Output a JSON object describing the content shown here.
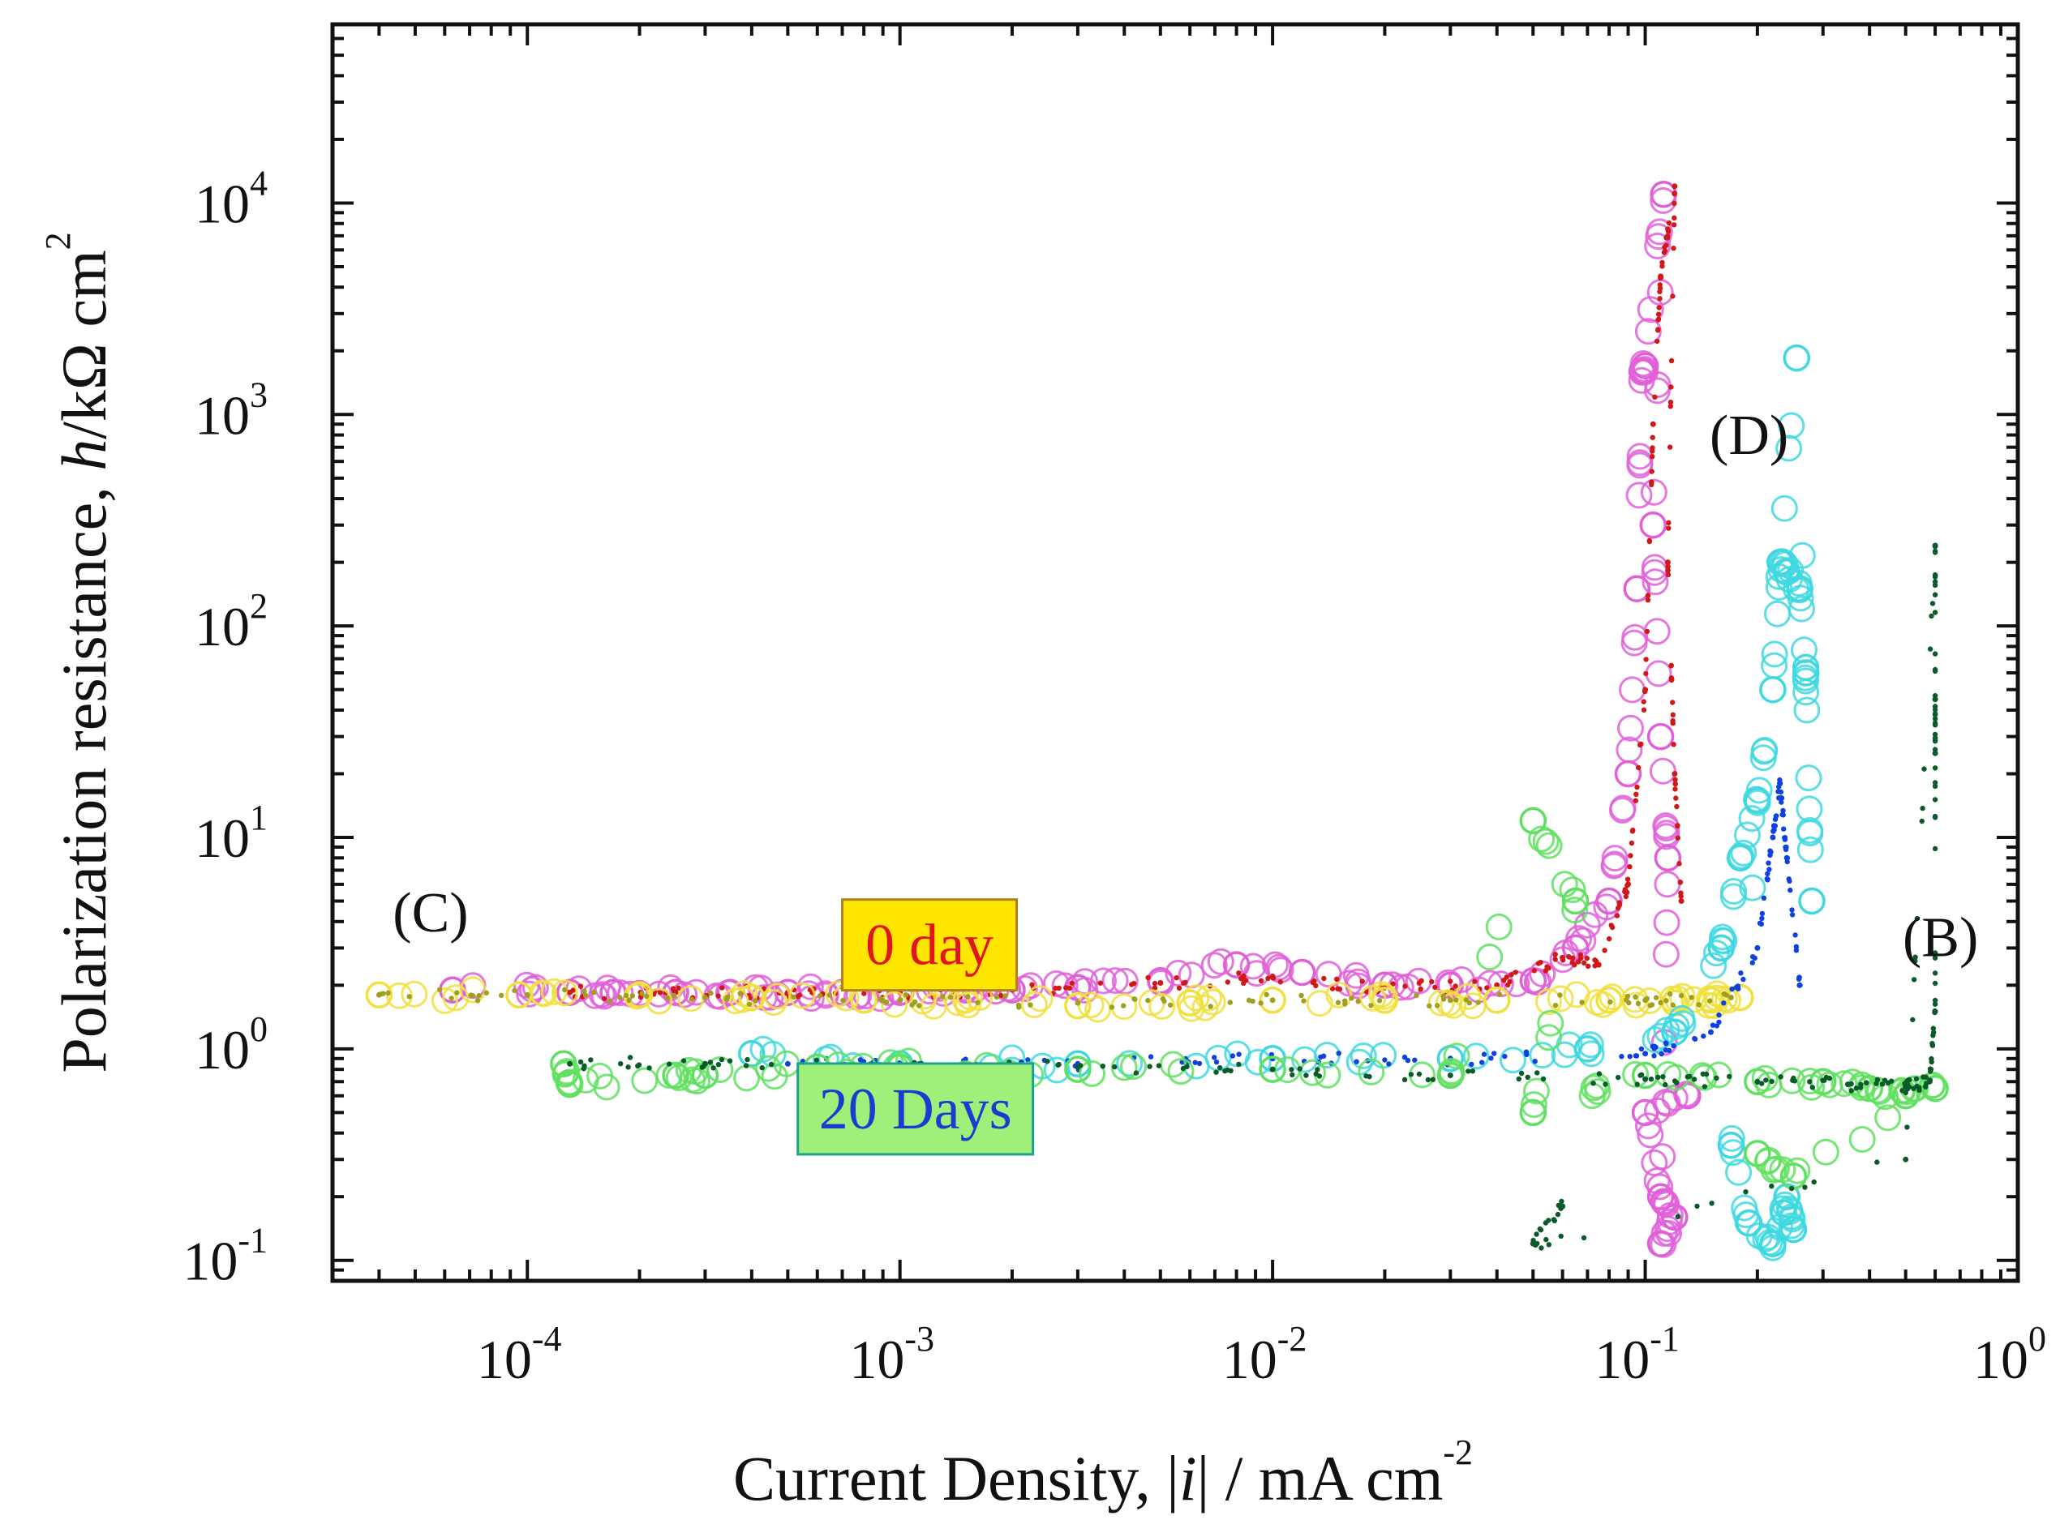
{
  "chart_data": {
    "type": "scatter",
    "title": "",
    "xlabel": "Current Density, |i| / mA cm",
    "xlabel_italic": "i",
    "xlabel_exp": "-2",
    "ylabel": "Polarization resistance, h/kΩ cm",
    "ylabel_italic": "h",
    "ylabel_exp": "2",
    "xscale": "log",
    "yscale": "log",
    "xlim": [
      3e-05,
      1.0
    ],
    "ylim": [
      0.08,
      70000
    ],
    "xticks": [
      {
        "value": 0.0001,
        "base": "10",
        "exp": "-4"
      },
      {
        "value": 0.001,
        "base": "10",
        "exp": "-3"
      },
      {
        "value": 0.01,
        "base": "10",
        "exp": "-2"
      },
      {
        "value": 0.1,
        "base": "10",
        "exp": "-1"
      },
      {
        "value": 1,
        "base": "10",
        "exp": "0"
      }
    ],
    "yticks": [
      {
        "value": 0.1,
        "base": "10",
        "exp": "-1"
      },
      {
        "value": 1,
        "base": "10",
        "exp": "0"
      },
      {
        "value": 10,
        "base": "10",
        "exp": "1"
      },
      {
        "value": 100,
        "base": "10",
        "exp": "2"
      },
      {
        "value": 1000,
        "base": "10",
        "exp": "3"
      },
      {
        "value": 10000,
        "base": "10",
        "exp": "4"
      }
    ],
    "legend": [
      {
        "label": "0 day",
        "text_color": "#e0161e",
        "box_fill": "#ffe600",
        "box_border": "#b08020"
      },
      {
        "label": "20 Days",
        "text_color": "#1a3cd0",
        "box_fill": "#9ef07a",
        "box_border": "#20a090"
      }
    ],
    "annotations": [
      {
        "text": "(C)",
        "x": 5.5e-05,
        "y": 3.6
      },
      {
        "text": "(D)",
        "x": 0.19,
        "y": 650
      },
      {
        "text": "(B)",
        "x": 0.62,
        "y": 2.75
      }
    ],
    "series": [
      {
        "name": "0 day (pink circles)",
        "color": "#e060d8",
        "marker": "circle-open",
        "points": [
          [
            6.3e-05,
            1.9
          ],
          [
            0.00013,
            1.85
          ],
          [
            0.00017,
            1.85
          ],
          [
            0.00025,
            1.85
          ],
          [
            0.00035,
            1.85
          ],
          [
            0.0005,
            1.85
          ],
          [
            0.0007,
            1.85
          ],
          [
            0.001,
            1.85
          ],
          [
            0.0015,
            1.9
          ],
          [
            0.002,
            1.9
          ],
          [
            0.003,
            1.95
          ],
          [
            0.005,
            2.1
          ],
          [
            0.008,
            2.5
          ],
          [
            0.012,
            2.3
          ],
          [
            0.02,
            2.0
          ],
          [
            0.03,
            2.0
          ],
          [
            0.05,
            2.1
          ],
          [
            0.065,
            3.0
          ],
          [
            0.08,
            5
          ],
          [
            0.09,
            20
          ],
          [
            0.095,
            150
          ],
          [
            0.098,
            1600
          ],
          [
            0.1,
            1700
          ],
          [
            0.112,
            11000
          ],
          [
            0.105,
            300
          ],
          [
            0.11,
            30
          ],
          [
            0.115,
            8
          ],
          [
            0.11,
            0.12
          ],
          [
            0.12,
            0.16
          ],
          [
            0.11,
            0.2
          ],
          [
            0.1,
            0.5
          ],
          [
            0.13,
            0.6
          ]
        ]
      },
      {
        "name": "0 day (red dots)",
        "color": "#d01818",
        "marker": "dot",
        "points": [
          [
            0.00013,
            1.85
          ],
          [
            0.00025,
            1.85
          ],
          [
            0.0005,
            1.85
          ],
          [
            0.001,
            1.85
          ],
          [
            0.002,
            1.9
          ],
          [
            0.005,
            2.05
          ],
          [
            0.01,
            2.2
          ],
          [
            0.02,
            1.95
          ],
          [
            0.04,
            2.0
          ],
          [
            0.06,
            2.7
          ],
          [
            0.075,
            2.5
          ],
          [
            0.09,
            6
          ],
          [
            0.1,
            50
          ],
          [
            0.105,
            900
          ],
          [
            0.11,
            4500
          ],
          [
            0.12,
            12000
          ],
          [
            0.115,
            200
          ],
          [
            0.12,
            20
          ],
          [
            0.125,
            5
          ]
        ]
      },
      {
        "name": "0 day (yellow circles)",
        "color": "#f0e040",
        "marker": "circle-open",
        "points": [
          [
            4e-05,
            1.8
          ],
          [
            9.5e-05,
            1.8
          ],
          [
            0.0002,
            1.8
          ],
          [
            0.0004,
            1.75
          ],
          [
            0.0008,
            1.7
          ],
          [
            0.0015,
            1.7
          ],
          [
            0.003,
            1.6
          ],
          [
            0.006,
            1.65
          ],
          [
            0.01,
            1.7
          ],
          [
            0.02,
            1.7
          ],
          [
            0.04,
            1.7
          ],
          [
            0.08,
            1.7
          ],
          [
            0.12,
            1.65
          ],
          [
            0.15,
            1.7
          ],
          [
            0.18,
            1.75
          ]
        ]
      },
      {
        "name": "0 day (olive dots)",
        "color": "#a0a020",
        "marker": "dot",
        "points": [
          [
            4e-05,
            1.8
          ],
          [
            0.0001,
            1.8
          ],
          [
            0.0003,
            1.75
          ],
          [
            0.001,
            1.7
          ],
          [
            0.003,
            1.65
          ],
          [
            0.01,
            1.7
          ],
          [
            0.03,
            1.7
          ],
          [
            0.1,
            1.7
          ],
          [
            0.17,
            1.75
          ]
        ]
      },
      {
        "name": "20 Days (cyan circles)",
        "color": "#40d8e0",
        "marker": "circle-open",
        "points": [
          [
            0.0004,
            0.95
          ],
          [
            0.001,
            0.85
          ],
          [
            0.003,
            0.85
          ],
          [
            0.01,
            0.9
          ],
          [
            0.03,
            0.9
          ],
          [
            0.07,
            1.0
          ],
          [
            0.12,
            1.2
          ],
          [
            0.16,
            3
          ],
          [
            0.18,
            8
          ],
          [
            0.2,
            15
          ],
          [
            0.22,
            50
          ],
          [
            0.23,
            200
          ],
          [
            0.24,
            180
          ],
          [
            0.26,
            150
          ],
          [
            0.27,
            60
          ],
          [
            0.28,
            5
          ],
          [
            0.255,
            1850
          ],
          [
            0.17,
            0.35
          ],
          [
            0.19,
            0.15
          ],
          [
            0.22,
            0.12
          ],
          [
            0.24,
            0.2
          ],
          [
            0.25,
            0.14
          ]
        ]
      },
      {
        "name": "20 Days (blue dots)",
        "color": "#1040e0",
        "marker": "dot",
        "points": [
          [
            0.0005,
            0.85
          ],
          [
            0.001,
            0.85
          ],
          [
            0.003,
            0.85
          ],
          [
            0.01,
            0.9
          ],
          [
            0.03,
            0.9
          ],
          [
            0.1,
            0.95
          ],
          [
            0.15,
            1.2
          ],
          [
            0.2,
            3
          ],
          [
            0.22,
            10
          ],
          [
            0.23,
            18
          ],
          [
            0.24,
            8
          ],
          [
            0.26,
            2
          ]
        ]
      },
      {
        "name": "20 Days (green circles)",
        "color": "#60e060",
        "marker": "circle-open",
        "points": [
          [
            0.000125,
            0.85
          ],
          [
            0.00013,
            0.68
          ],
          [
            0.00025,
            0.75
          ],
          [
            0.0003,
            0.75
          ],
          [
            0.0006,
            0.82
          ],
          [
            0.001,
            0.82
          ],
          [
            0.003,
            0.8
          ],
          [
            0.01,
            0.8
          ],
          [
            0.03,
            0.75
          ],
          [
            0.05,
            12
          ],
          [
            0.065,
            5
          ],
          [
            0.05,
            0.5
          ],
          [
            0.1,
            0.75
          ],
          [
            0.2,
            0.7
          ],
          [
            0.3,
            0.7
          ],
          [
            0.4,
            0.65
          ],
          [
            0.5,
            0.6
          ],
          [
            0.6,
            0.65
          ],
          [
            0.25,
            0.25
          ],
          [
            0.2,
            0.32
          ]
        ]
      },
      {
        "name": "20 Days (dark green dots)",
        "color": "#0a5a2a",
        "marker": "dot",
        "points": [
          [
            0.00013,
            0.85
          ],
          [
            0.0003,
            0.85
          ],
          [
            0.001,
            0.82
          ],
          [
            0.003,
            0.82
          ],
          [
            0.01,
            0.8
          ],
          [
            0.03,
            0.75
          ],
          [
            0.1,
            0.72
          ],
          [
            0.2,
            0.7
          ],
          [
            0.35,
            0.68
          ],
          [
            0.5,
            0.66
          ],
          [
            0.58,
            0.7
          ],
          [
            0.6,
            1.5
          ],
          [
            0.6,
            25
          ],
          [
            0.6,
            45
          ],
          [
            0.6,
            240
          ],
          [
            0.5,
            0.3
          ],
          [
            0.05,
            0.12
          ],
          [
            0.06,
            0.18
          ]
        ]
      }
    ]
  }
}
